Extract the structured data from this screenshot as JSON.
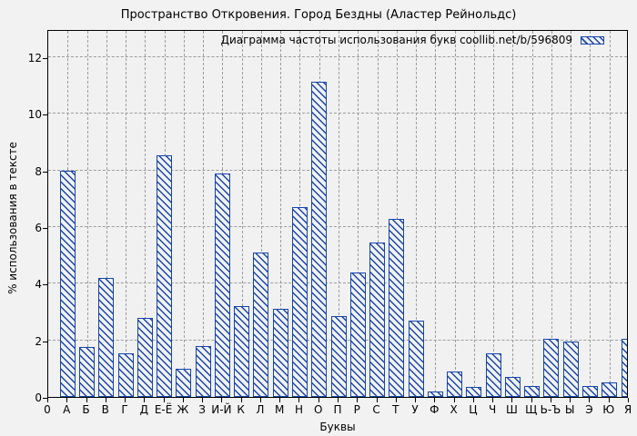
{
  "chart_data": {
    "type": "bar",
    "title": "Пространство Откровения. Город Бездны (Аластер Рейнольдс)",
    "legend_label": "Диаграмма частоты использования букв coollib.net/b/596809",
    "legend_position": "top-right-inside",
    "xlabel": "Буквы",
    "ylabel": "% использования в тексте",
    "origin_label": "0",
    "categories": [
      "А",
      "Б",
      "В",
      "Г",
      "Д",
      "Е-Ё",
      "Ж",
      "З",
      "И-Й",
      "К",
      "Л",
      "М",
      "Н",
      "О",
      "П",
      "Р",
      "С",
      "Т",
      "У",
      "Ф",
      "Х",
      "Ц",
      "Ч",
      "Ш",
      "Щ",
      "Ь-Ъ",
      "Ы",
      "Э",
      "Ю",
      "Я"
    ],
    "values": [
      8.0,
      1.75,
      4.2,
      1.55,
      2.8,
      8.55,
      1.0,
      1.8,
      7.9,
      3.2,
      5.1,
      3.1,
      6.7,
      11.15,
      2.85,
      4.4,
      5.45,
      6.3,
      2.7,
      0.2,
      0.9,
      0.35,
      1.55,
      0.7,
      0.4,
      2.05,
      1.95,
      0.4,
      0.5,
      2.05
    ],
    "yticks": [
      0,
      2,
      4,
      6,
      8,
      10,
      12
    ],
    "ylim": [
      0,
      13
    ],
    "grid": true,
    "hatch": "diagonal-backslash",
    "bar_color": "#1545ac",
    "grid_color": "#9c9c9c",
    "background_color": "#f2f2f2",
    "axis_color": "#000000"
  }
}
